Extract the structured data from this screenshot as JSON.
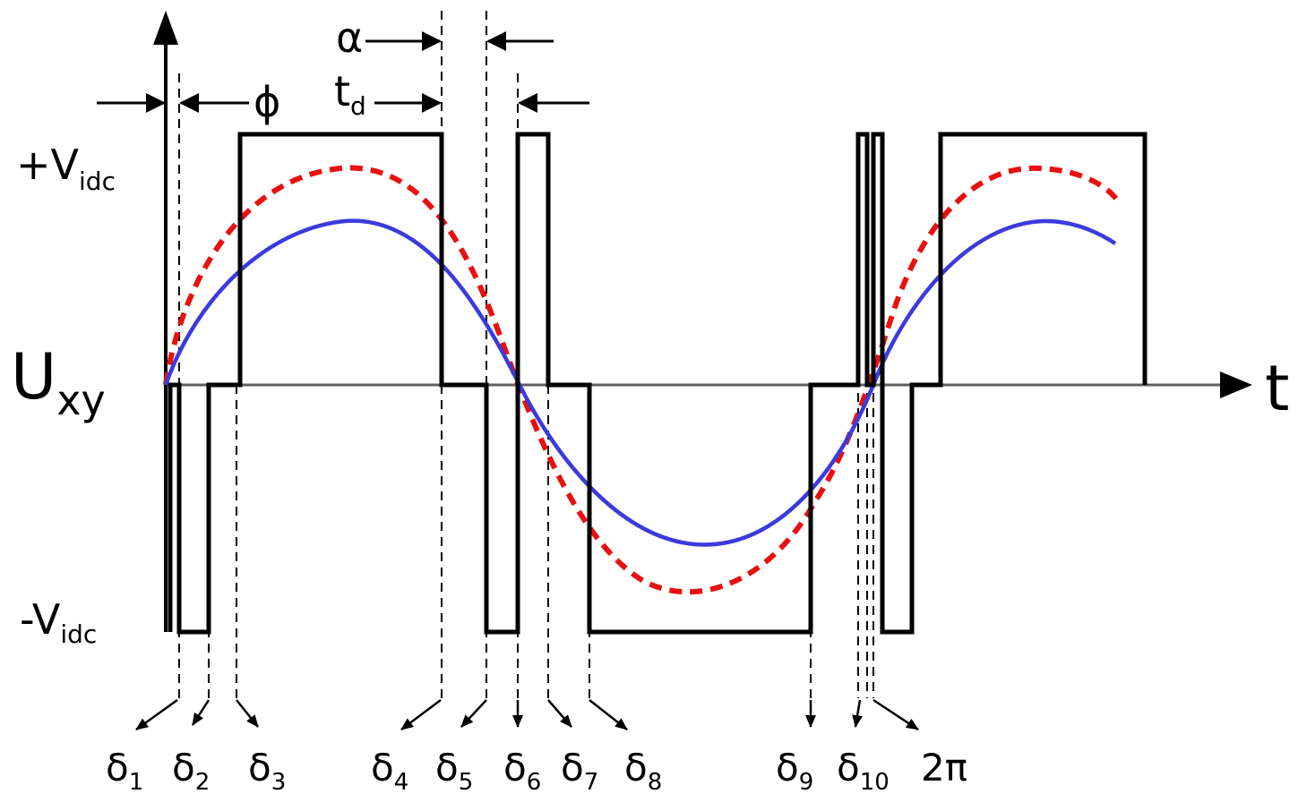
{
  "labels": {
    "y_axis": "U",
    "y_axis_sub": "xy",
    "x_axis": "t",
    "pos_level": "+V",
    "pos_level_sub": "idc",
    "neg_level": "-V",
    "neg_level_sub": "idc",
    "phi": "ϕ",
    "alpha": "α",
    "td": "t",
    "td_sub": "d"
  },
  "deltas": [
    {
      "sym": "δ",
      "sub": "1"
    },
    {
      "sym": "δ",
      "sub": "2"
    },
    {
      "sym": "δ",
      "sub": "3"
    },
    {
      "sym": "δ",
      "sub": "4"
    },
    {
      "sym": "δ",
      "sub": "5"
    },
    {
      "sym": "δ",
      "sub": "6"
    },
    {
      "sym": "δ",
      "sub": "7"
    },
    {
      "sym": "δ",
      "sub": "8"
    },
    {
      "sym": "δ",
      "sub": "9"
    },
    {
      "sym": "δ",
      "sub": "10"
    }
  ],
  "end_label": "2π",
  "colors": {
    "pulse": "#000000",
    "solid_sine": "#3b3bdc",
    "dashed_sine": "#e81010",
    "axis": "#606060"
  }
}
